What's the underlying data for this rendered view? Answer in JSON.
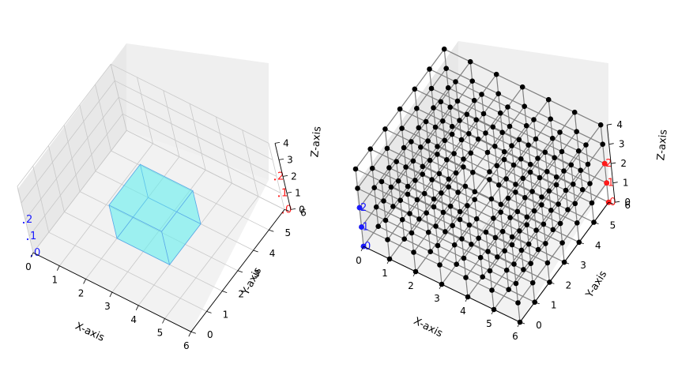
{
  "chart_data": [
    {
      "type": "3d-scatter",
      "title": "",
      "xlabel": "X-axis",
      "ylabel": "Y-axis",
      "zlabel": "Z-axis",
      "xlim": [
        0,
        6
      ],
      "ylim": [
        0,
        6
      ],
      "zlim": [
        0,
        4
      ],
      "xticks": [
        "0",
        "1",
        "2",
        "3",
        "4",
        "5",
        "6"
      ],
      "yticks": [
        "0",
        "1",
        "2",
        "3",
        "4",
        "5",
        "6"
      ],
      "zticks": [
        "0",
        "1",
        "2",
        "3",
        "4"
      ],
      "grid": true,
      "colors": {
        "pane": "#f2f2f2",
        "grid": "#c8c8c8",
        "cube_fill": "#66f0f0",
        "cube_edge": "#5aa8e8",
        "blue": "#1a1aff",
        "red": "#ff1a1a"
      },
      "cube": {
        "x": [
          2,
          4
        ],
        "y": [
          2,
          4
        ],
        "z": [
          0,
          2
        ]
      },
      "points": [
        {
          "label": "0",
          "x": 0,
          "y": 0,
          "z": 0,
          "color": "blue"
        },
        {
          "label": "1",
          "x": 0,
          "y": 0,
          "z": 1,
          "color": "blue"
        },
        {
          "label": "2",
          "x": 0,
          "y": 0,
          "z": 2,
          "color": "blue"
        },
        {
          "label": "0",
          "x": 6,
          "y": 6,
          "z": 0,
          "color": "red"
        },
        {
          "label": "1",
          "x": 6,
          "y": 6,
          "z": 1,
          "color": "red"
        },
        {
          "label": "2",
          "x": 6,
          "y": 6,
          "z": 2,
          "color": "red"
        }
      ]
    },
    {
      "type": "3d-scatter",
      "title": "",
      "xlabel": "X-axis",
      "ylabel": "Y-axis",
      "zlabel": "Z-axis",
      "xlim": [
        0,
        6
      ],
      "ylim": [
        0,
        6
      ],
      "zlim": [
        0,
        4
      ],
      "xticks": [
        "0",
        "1",
        "2",
        "3",
        "4",
        "5",
        "6"
      ],
      "yticks": [
        "0",
        "1",
        "2",
        "3",
        "4",
        "5",
        "6"
      ],
      "zticks": [
        "0",
        "1",
        "2",
        "3",
        "4"
      ],
      "grid": true,
      "colors": {
        "pane": "#f2f2f2",
        "grid": "#c8c8c8",
        "node": "#000000",
        "edge": "#808080",
        "blue": "#1a1aff",
        "red": "#ff1a1a"
      },
      "lattice": {
        "x": [
          0,
          6
        ],
        "y": [
          0,
          6
        ],
        "z": [
          0,
          4
        ],
        "step": 1,
        "hole": {
          "x": [
            2,
            4
          ],
          "y": [
            2,
            4
          ],
          "z": [
            0,
            4
          ]
        }
      },
      "points": [
        {
          "label": "0",
          "x": 0,
          "y": 0,
          "z": 0,
          "color": "blue"
        },
        {
          "label": "1",
          "x": 0,
          "y": 0,
          "z": 1,
          "color": "blue"
        },
        {
          "label": "2",
          "x": 0,
          "y": 0,
          "z": 2,
          "color": "blue"
        },
        {
          "label": "0",
          "x": 6,
          "y": 6,
          "z": 0,
          "color": "red"
        },
        {
          "label": "1",
          "x": 6,
          "y": 6,
          "z": 1,
          "color": "red"
        },
        {
          "label": "2",
          "x": 6,
          "y": 6,
          "z": 2,
          "color": "red"
        }
      ]
    }
  ]
}
